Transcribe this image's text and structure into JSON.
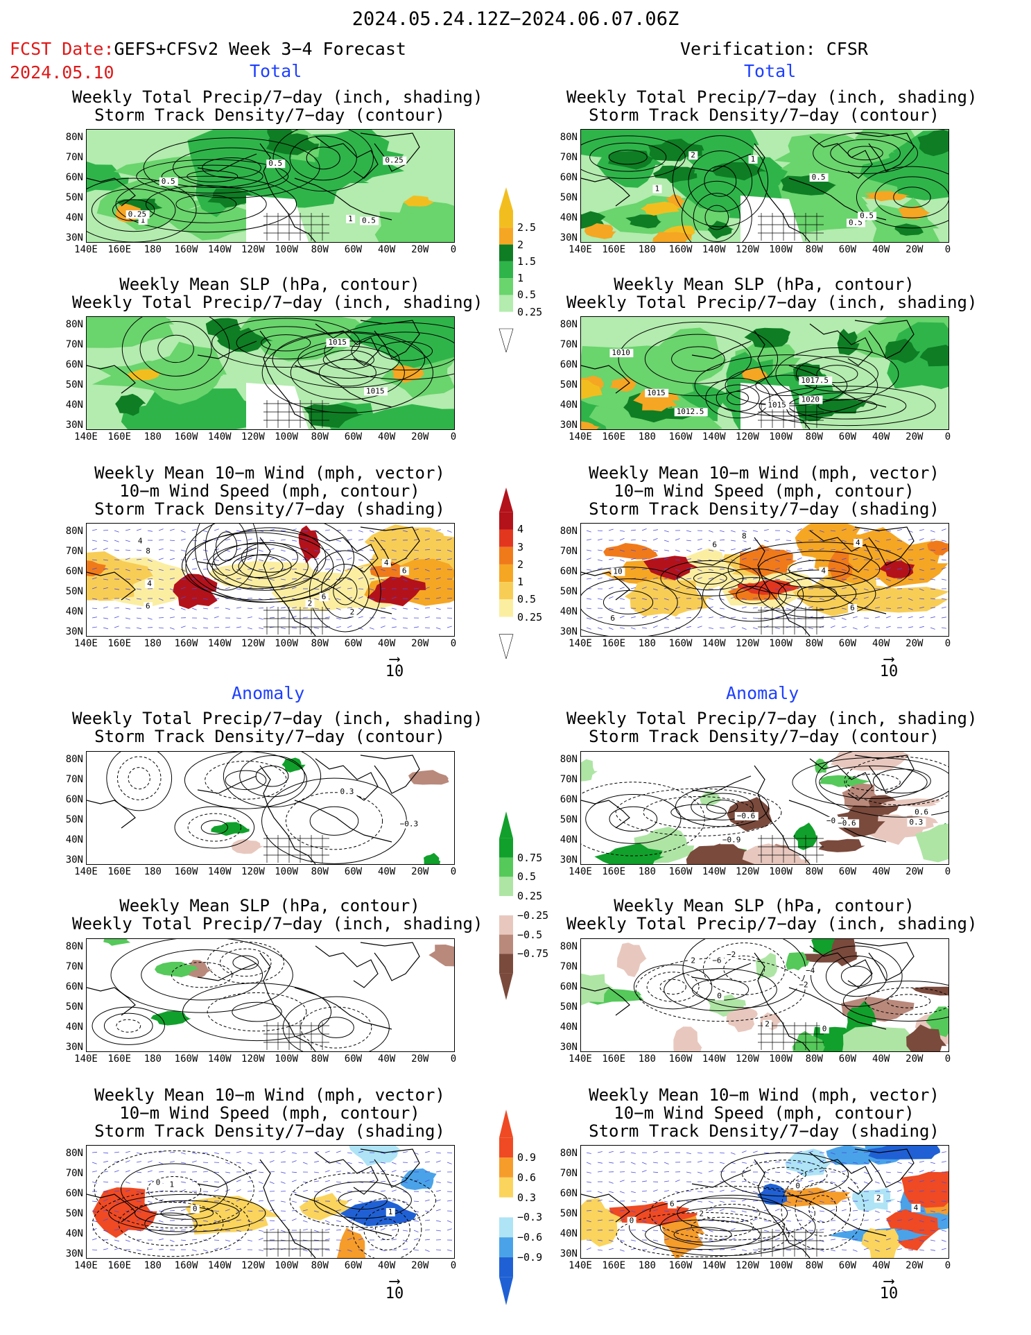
{
  "header": {
    "date_range": "2024.05.24.12Z−2024.06.07.06Z",
    "fcst_prefix": "FCST Date:",
    "fcst_model": "GEFS+CFSv2 Week 3−4 Forecast",
    "fcst_date": "2024.05.10",
    "verification": "Verification: CFSR"
  },
  "sections": {
    "total": "Total",
    "anomaly": "Anomaly"
  },
  "panel_titles": {
    "precip_storm": [
      "Weekly Total Precip/7−day (inch, shading)",
      "Storm Track Density/7−day (contour)"
    ],
    "slp_precip": [
      "Weekly Mean SLP (hPa, contour)",
      "Weekly Total Precip/7−day (inch, shading)"
    ],
    "wind_storm": [
      "Weekly Mean 10−m Wind (mph, vector)",
      "10−m Wind Speed (mph, contour)",
      "Storm Track Density/7−day (shading)"
    ]
  },
  "axes": {
    "lat_labels": [
      "80N",
      "70N",
      "60N",
      "50N",
      "40N",
      "30N"
    ],
    "lon_labels": [
      "140E",
      "160E",
      "180",
      "160W",
      "140W",
      "120W",
      "100W",
      "80W",
      "60W",
      "40W",
      "20W",
      "0"
    ]
  },
  "vector_reference": "10",
  "colorbars": {
    "precip_total": {
      "labels": [
        "2.5",
        "2",
        "1.5",
        "1",
        "0.5",
        "0.25"
      ],
      "colors": [
        "#f2be1f",
        "#f5a623",
        "#0e7d24",
        "#2fb44a",
        "#6ad46d",
        "#b3ecae"
      ]
    },
    "storm_total": {
      "labels": [
        "4",
        "3",
        "2",
        "1",
        "0.5",
        "0.25"
      ],
      "colors": [
        "#b3121b",
        "#e2361f",
        "#f07a1a",
        "#f5a623",
        "#f8cd55",
        "#fbeea1"
      ]
    },
    "precip_anom": {
      "labels": [
        "0.75",
        "0.5",
        "0.25",
        "−0.25",
        "−0.5",
        "−0.75"
      ],
      "colors": [
        "#11a02b",
        "#55c95a",
        "#aee5a4",
        "#e8c8be",
        "#b9897b",
        "#7a4a3c"
      ]
    },
    "storm_anom": {
      "labels": [
        "0.9",
        "0.6",
        "0.3",
        "−0.3",
        "−0.6",
        "−0.9"
      ],
      "colors": [
        "#ef4a23",
        "#f59c2b",
        "#fad45c",
        "#aee4f5",
        "#4aa3e8",
        "#1f61d4"
      ]
    }
  },
  "contour_labels": {
    "fc_precip": [
      "0.25",
      "0.5",
      "1",
      "0.5",
      "1",
      "0.5",
      "0.25"
    ],
    "fc_slp": [
      "1015",
      "1015"
    ],
    "fc_wind": [
      "4",
      "2",
      "6",
      "4",
      "6",
      "4",
      "2",
      "6",
      "8"
    ],
    "ob_precip": [
      "0.5",
      "1",
      "2",
      "0.5",
      "1",
      "0.5"
    ],
    "ob_slp": [
      "1020",
      "1017.5",
      "1010",
      "1012.5",
      "1015",
      "1015"
    ],
    "ob_wind": [
      "4",
      "6",
      "8",
      "10",
      "6",
      "4",
      "6"
    ],
    "fc_precip_anom": [
      "0.3",
      "−0.3"
    ],
    "ob_precip_anom": [
      "0.6",
      "−0.3",
      "−0.9",
      "−0.6",
      "−0.6",
      "0.3"
    ],
    "ob_slp_anom": [
      "−2",
      "0",
      "2",
      "−6",
      "−4",
      "2",
      "−2",
      "0"
    ],
    "fc_wind_anom": [
      "0",
      "1",
      "0",
      "1"
    ],
    "ob_wind_anom": [
      "0",
      "2",
      "0",
      "4",
      "6",
      "2"
    ]
  }
}
